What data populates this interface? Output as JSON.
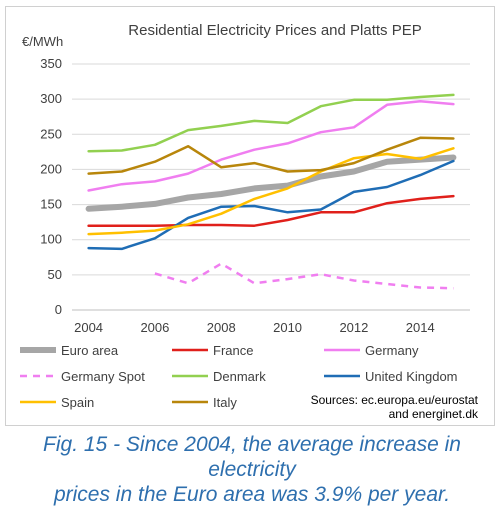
{
  "chart_data": {
    "type": "line",
    "title": "Residential Electricity Prices and Platts PEP",
    "ylabel": "€/MWh",
    "xlabel": "",
    "xlim": [
      2003.5,
      2015.5
    ],
    "ylim": [
      0,
      350
    ],
    "xticks": [
      2004,
      2006,
      2008,
      2010,
      2012,
      2014
    ],
    "yticks": [
      0,
      50,
      100,
      150,
      200,
      250,
      300,
      350
    ],
    "grid": "horizontal",
    "legend_position": "bottom",
    "series": [
      {
        "name": "Euro area",
        "color": "#a6a6a6",
        "dashed": false,
        "thick": true,
        "x": [
          2004,
          2005,
          2006,
          2007,
          2008,
          2009,
          2010,
          2011,
          2012,
          2013,
          2014,
          2015
        ],
        "values": [
          144,
          147,
          151,
          160,
          165,
          173,
          177,
          190,
          197,
          211,
          214,
          217
        ]
      },
      {
        "name": "France",
        "color": "#e0201b",
        "dashed": false,
        "thick": false,
        "x": [
          2004,
          2005,
          2006,
          2007,
          2008,
          2009,
          2010,
          2011,
          2012,
          2013,
          2014,
          2015
        ],
        "values": [
          120,
          120,
          120,
          121,
          121,
          120,
          128,
          139,
          139,
          152,
          158,
          162
        ]
      },
      {
        "name": "Germany",
        "color": "#f07ef0",
        "dashed": false,
        "thick": false,
        "x": [
          2004,
          2005,
          2006,
          2007,
          2008,
          2009,
          2010,
          2011,
          2012,
          2013,
          2014,
          2015
        ],
        "values": [
          170,
          179,
          183,
          194,
          214,
          228,
          237,
          253,
          260,
          292,
          297,
          293
        ]
      },
      {
        "name": "Germany Spot",
        "color": "#f07ef0",
        "dashed": true,
        "thick": false,
        "x": [
          2006,
          2007,
          2008,
          2009,
          2010,
          2011,
          2012,
          2013,
          2014,
          2015
        ],
        "values": [
          52,
          38,
          66,
          38,
          44,
          51,
          42,
          37,
          32,
          31
        ]
      },
      {
        "name": "Denmark",
        "color": "#92d050",
        "dashed": false,
        "thick": false,
        "x": [
          2004,
          2005,
          2006,
          2007,
          2008,
          2009,
          2010,
          2011,
          2012,
          2013,
          2014,
          2015
        ],
        "values": [
          226,
          227,
          235,
          256,
          262,
          269,
          266,
          290,
          299,
          299,
          303,
          306
        ]
      },
      {
        "name": "United Kingdom",
        "color": "#1f6db5",
        "dashed": false,
        "thick": false,
        "x": [
          2004,
          2005,
          2006,
          2007,
          2008,
          2009,
          2010,
          2011,
          2012,
          2013,
          2014,
          2015
        ],
        "values": [
          88,
          87,
          102,
          131,
          147,
          148,
          139,
          143,
          168,
          175,
          192,
          212
        ]
      },
      {
        "name": "Spain",
        "color": "#ffc000",
        "dashed": false,
        "thick": false,
        "x": [
          2004,
          2005,
          2006,
          2007,
          2008,
          2009,
          2010,
          2011,
          2012,
          2013,
          2014,
          2015
        ],
        "values": [
          108,
          110,
          113,
          122,
          137,
          158,
          173,
          197,
          216,
          222,
          215,
          230
        ]
      },
      {
        "name": "Italy",
        "color": "#b8860b",
        "dashed": false,
        "thick": false,
        "x": [
          2004,
          2005,
          2006,
          2007,
          2008,
          2009,
          2010,
          2011,
          2012,
          2013,
          2014,
          2015
        ],
        "values": [
          194,
          197,
          211,
          233,
          203,
          209,
          197,
          199,
          209,
          228,
          245,
          244
        ]
      }
    ],
    "annotations": [
      "Sources: ec.europa.eu/eurostat",
      "and energinet.dk"
    ]
  },
  "caption": {
    "line1": "Fig. 15 - Since 2004, the average increase in electricity",
    "line2": "prices in the Euro area was 3.9% per year."
  }
}
